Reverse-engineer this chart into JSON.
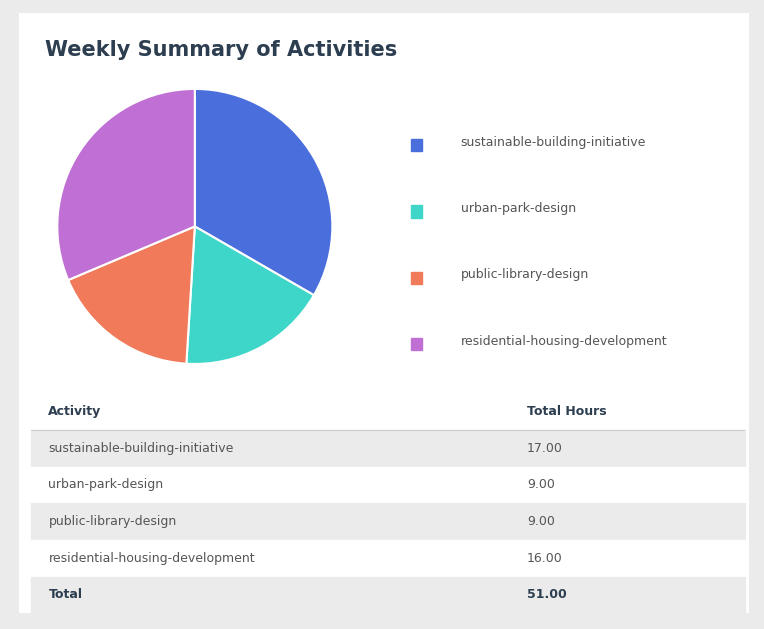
{
  "title": "Weekly Summary of Activities",
  "activities": [
    "sustainable-building-initiative",
    "urban-park-design",
    "public-library-design",
    "residential-housing-development"
  ],
  "hours": [
    17.0,
    9.0,
    9.0,
    16.0
  ],
  "total": 51.0,
  "colors": [
    "#4a6fdc",
    "#3dd6c8",
    "#f07a5a",
    "#c070d4"
  ],
  "background_color": "#ebebeb",
  "card_color": "#ffffff",
  "title_color": "#2c3e50",
  "table_header_color": "#2c3e50",
  "table_row_alt_color": "#ebebeb",
  "table_row_color": "#ffffff",
  "table_text_color": "#555555",
  "legend_text_color": "#555555",
  "title_fontsize": 15,
  "legend_fontsize": 9,
  "table_fontsize": 9,
  "header_fontsize": 9
}
